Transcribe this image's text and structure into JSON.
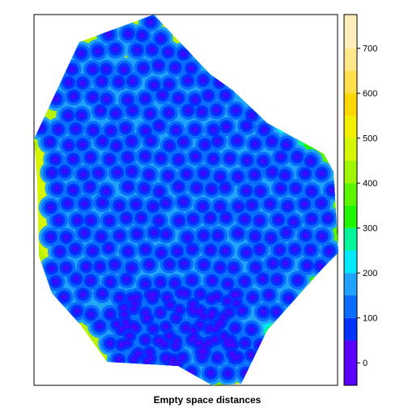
{
  "chart_data": {
    "type": "heatmap",
    "title": "Empty space distances",
    "colorbar": {
      "ticks": [
        0,
        100,
        200,
        300,
        400,
        500,
        600,
        700
      ],
      "tick_labels": [
        "0",
        "100",
        "200",
        "300",
        "400",
        "500",
        "600",
        "700"
      ],
      "range": [
        -50,
        775
      ],
      "levels": [
        {
          "from": -50,
          "to": 50,
          "color": "#5a00ff"
        },
        {
          "from": 50,
          "to": 100,
          "color": "#0033ff"
        },
        {
          "from": 100,
          "to": 150,
          "color": "#0a6cff"
        },
        {
          "from": 150,
          "to": 200,
          "color": "#1fa3ff"
        },
        {
          "from": 200,
          "to": 250,
          "color": "#00e8ff"
        },
        {
          "from": 250,
          "to": 300,
          "color": "#00f59a"
        },
        {
          "from": 300,
          "to": 350,
          "color": "#1ff500"
        },
        {
          "from": 350,
          "to": 400,
          "color": "#5cf500"
        },
        {
          "from": 400,
          "to": 450,
          "color": "#a0f500"
        },
        {
          "from": 450,
          "to": 500,
          "color": "#d6f500"
        },
        {
          "from": 500,
          "to": 550,
          "color": "#f2ee00"
        },
        {
          "from": 550,
          "to": 600,
          "color": "#ffd700"
        },
        {
          "from": 600,
          "to": 650,
          "color": "#ffe04a"
        },
        {
          "from": 650,
          "to": 700,
          "color": "#ffe88a"
        },
        {
          "from": 700,
          "to": 775,
          "color": "#ffeebb"
        }
      ]
    },
    "grid": false,
    "legend": "right"
  }
}
